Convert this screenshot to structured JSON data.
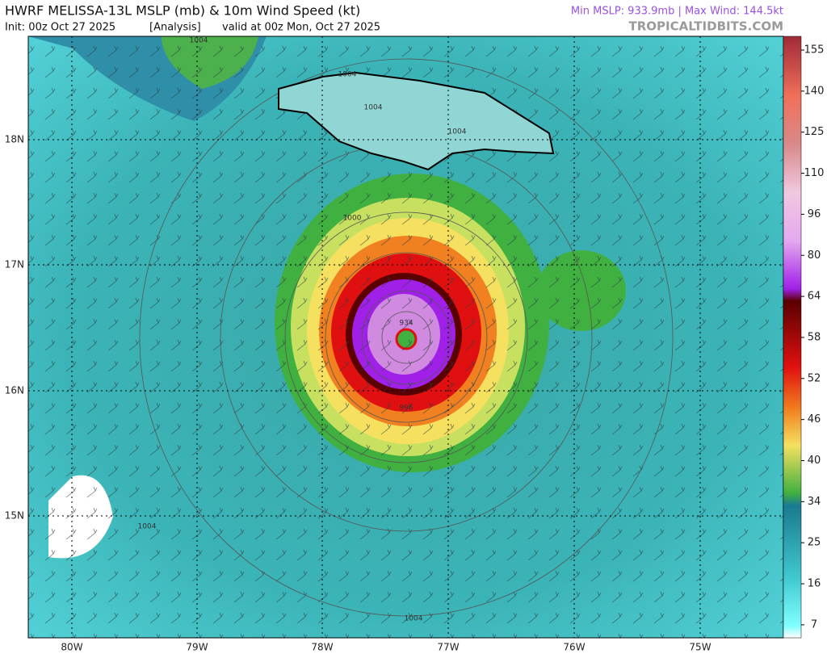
{
  "header": {
    "title": "HWRF MELISSA-13L MSLP (mb) & 10m Wind Speed (kt)",
    "init": "Init: 00z Oct 27 2025",
    "analysis": "[Analysis]",
    "valid": "valid at 00z Mon, Oct 27 2025",
    "stats": "Min MSLP: 933.9mb | Max Wind: 144.5kt",
    "site": "TROPICALTIDBITS.COM"
  },
  "map": {
    "lat_labels": [
      "18N",
      "17N",
      "16N",
      "15N"
    ],
    "lon_labels": [
      "80W",
      "79W",
      "78W",
      "77W",
      "76W",
      "75W"
    ],
    "contour_labels": [
      "1004",
      "1004",
      "1004",
      "1004",
      "1004",
      "1000",
      "996",
      "934",
      "1004"
    ]
  },
  "colorbar": {
    "labels": [
      155,
      140,
      125,
      110,
      96,
      80,
      64,
      58,
      52,
      46,
      40,
      34,
      25,
      16,
      7
    ]
  }
}
